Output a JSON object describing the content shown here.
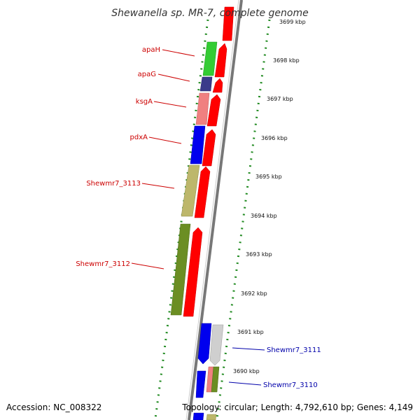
{
  "title": "Shewanella sp. MR-7, complete genome",
  "footer": {
    "accession": "Accession: NC_008322",
    "topology": "Topology: circular; Length: 4,792,610 bp; Genes: 4,149"
  },
  "colors": {
    "forward_strand_arrow": "#ff0000",
    "backbone": "#888888",
    "gc_dots": "#228b22",
    "label_red": "#cc0000",
    "label_blue": "#0000aa",
    "apaH": "#33cc33",
    "apaG": "#3a3a8a",
    "ksgA": "#f08080",
    "pdxA": "#0000ee",
    "Shewmr7_3113": "#bdb76b",
    "Shewmr7_3112": "#6b8e23",
    "Shewmr7_3111": "#cfcfcf",
    "Shewmr7_3110": "#f08080"
  },
  "ticks": [
    "3699 kbp",
    "3698 kbp",
    "3697 kbp",
    "3696 kbp",
    "3695 kbp",
    "3694 kbp",
    "3693 kbp",
    "3692 kbp",
    "3691 kbp",
    "3690 kbp"
  ],
  "genes_forward": [
    {
      "name": "apaH",
      "color_key": "apaH"
    },
    {
      "name": "apaG",
      "color_key": "apaG"
    },
    {
      "name": "ksgA",
      "color_key": "ksgA"
    },
    {
      "name": "pdxA",
      "color_key": "pdxA"
    },
    {
      "name": "Shewmr7_3113",
      "color_key": "Shewmr7_3113"
    },
    {
      "name": "Shewmr7_3112",
      "color_key": "Shewmr7_3112"
    }
  ],
  "genes_reverse": [
    {
      "name": "Shewmr7_3111",
      "color_key": "Shewmr7_3111"
    },
    {
      "name": "Shewmr7_3110",
      "color_key": "Shewmr7_3110"
    }
  ]
}
